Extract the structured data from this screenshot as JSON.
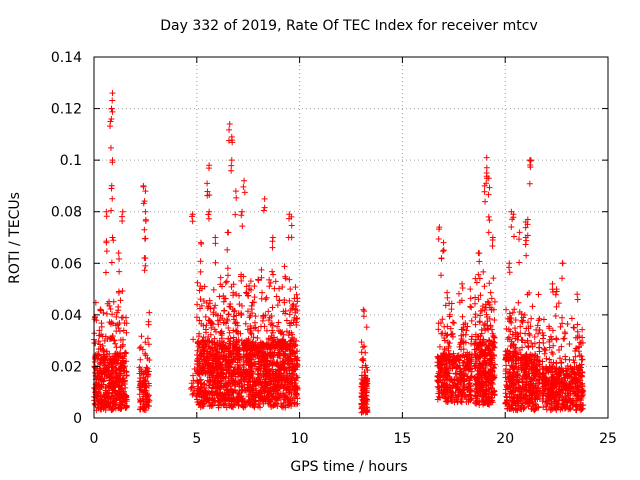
{
  "chart_data": {
    "type": "scatter",
    "title": "Day 332 of 2019, Rate Of TEC Index for receiver mtcv",
    "xlabel": "GPS time / hours",
    "ylabel": "ROTI / TECUs",
    "xlim": [
      0,
      25
    ],
    "ylim": [
      0,
      0.14
    ],
    "xticks": [
      0,
      5,
      10,
      15,
      20,
      25
    ],
    "yticks": [
      0,
      0.02,
      0.04,
      0.06,
      0.08,
      0.1,
      0.12,
      0.14
    ],
    "ytick_labels": [
      "0",
      "0.02",
      "0.04",
      "0.06",
      "0.08",
      "0.1",
      "0.12",
      "0.14"
    ],
    "grid": true,
    "marker": "+",
    "color": "#ff0000",
    "clusters": [
      {
        "x_range": [
          0.0,
          1.6
        ],
        "y_base": [
          0.003,
          0.025
        ],
        "y_spread": [
          0.025,
          0.05
        ],
        "n": 520,
        "peaks": [
          [
            0.9,
            0.126
          ],
          [
            0.85,
            0.12
          ],
          [
            0.8,
            0.115
          ],
          [
            0.9,
            0.1
          ],
          [
            0.85,
            0.089
          ],
          [
            0.6,
            0.08
          ],
          [
            1.4,
            0.08
          ],
          [
            0.6,
            0.068
          ],
          [
            1.2,
            0.064
          ],
          [
            0.9,
            0.07
          ]
        ]
      },
      {
        "x_range": [
          2.2,
          2.7
        ],
        "y_base": [
          0.003,
          0.02
        ],
        "y_spread": [
          0.02,
          0.045
        ],
        "n": 110,
        "peaks": [
          [
            2.4,
            0.09
          ],
          [
            2.5,
            0.088
          ],
          [
            2.5,
            0.08
          ],
          [
            2.45,
            0.073
          ],
          [
            2.5,
            0.062
          ]
        ]
      },
      {
        "x_range": [
          4.7,
          5.0
        ],
        "y_base": [
          0.007,
          0.02
        ],
        "y_spread": [
          0.015,
          0.02
        ],
        "n": 12,
        "peaks": [
          [
            4.8,
            0.079
          ]
        ]
      },
      {
        "x_range": [
          5.0,
          9.9
        ],
        "y_base": [
          0.004,
          0.03
        ],
        "y_spread": [
          0.03,
          0.06
        ],
        "n": 1700,
        "peaks": [
          [
            6.6,
            0.114
          ],
          [
            6.7,
            0.109
          ],
          [
            6.7,
            0.1
          ],
          [
            5.6,
            0.098
          ],
          [
            5.5,
            0.091
          ],
          [
            7.3,
            0.092
          ],
          [
            6.9,
            0.088
          ],
          [
            8.3,
            0.085
          ],
          [
            9.5,
            0.079
          ],
          [
            9.6,
            0.078
          ],
          [
            5.6,
            0.08
          ],
          [
            7.2,
            0.08
          ],
          [
            6.5,
            0.072
          ],
          [
            5.9,
            0.07
          ],
          [
            8.7,
            0.07
          ],
          [
            5.2,
            0.068
          ]
        ]
      },
      {
        "x_range": [
          13.0,
          13.3
        ],
        "y_base": [
          0.002,
          0.015
        ],
        "y_spread": [
          0.015,
          0.043
        ],
        "n": 120,
        "peaks": [
          [
            13.1,
            0.042
          ]
        ]
      },
      {
        "x_range": [
          16.7,
          18.4
        ],
        "y_base": [
          0.006,
          0.025
        ],
        "y_spread": [
          0.025,
          0.05
        ],
        "n": 420,
        "peaks": [
          [
            16.8,
            0.074
          ],
          [
            17.0,
            0.068
          ],
          [
            16.9,
            0.062
          ],
          [
            17.9,
            0.052
          ],
          [
            18.3,
            0.05
          ]
        ]
      },
      {
        "x_range": [
          18.5,
          19.5
        ],
        "y_base": [
          0.005,
          0.03
        ],
        "y_spread": [
          0.03,
          0.06
        ],
        "n": 380,
        "peaks": [
          [
            19.1,
            0.101
          ],
          [
            19.1,
            0.095
          ],
          [
            19.2,
            0.093
          ],
          [
            19.0,
            0.09
          ],
          [
            19.2,
            0.078
          ],
          [
            19.4,
            0.07
          ],
          [
            18.7,
            0.064
          ]
        ]
      },
      {
        "x_range": [
          20.0,
          21.7
        ],
        "y_base": [
          0.003,
          0.025
        ],
        "y_spread": [
          0.025,
          0.045
        ],
        "n": 520,
        "peaks": [
          [
            21.2,
            0.1
          ],
          [
            21.25,
            0.1
          ],
          [
            20.3,
            0.08
          ],
          [
            20.4,
            0.079
          ],
          [
            21.0,
            0.076
          ],
          [
            21.1,
            0.077
          ],
          [
            20.7,
            0.072
          ],
          [
            21.0,
            0.07
          ],
          [
            20.2,
            0.06
          ]
        ]
      },
      {
        "x_range": [
          21.8,
          23.8
        ],
        "y_base": [
          0.003,
          0.02
        ],
        "y_spread": [
          0.02,
          0.045
        ],
        "n": 500,
        "peaks": [
          [
            22.8,
            0.06
          ],
          [
            22.5,
            0.05
          ],
          [
            23.5,
            0.048
          ],
          [
            22.3,
            0.052
          ]
        ]
      }
    ]
  }
}
